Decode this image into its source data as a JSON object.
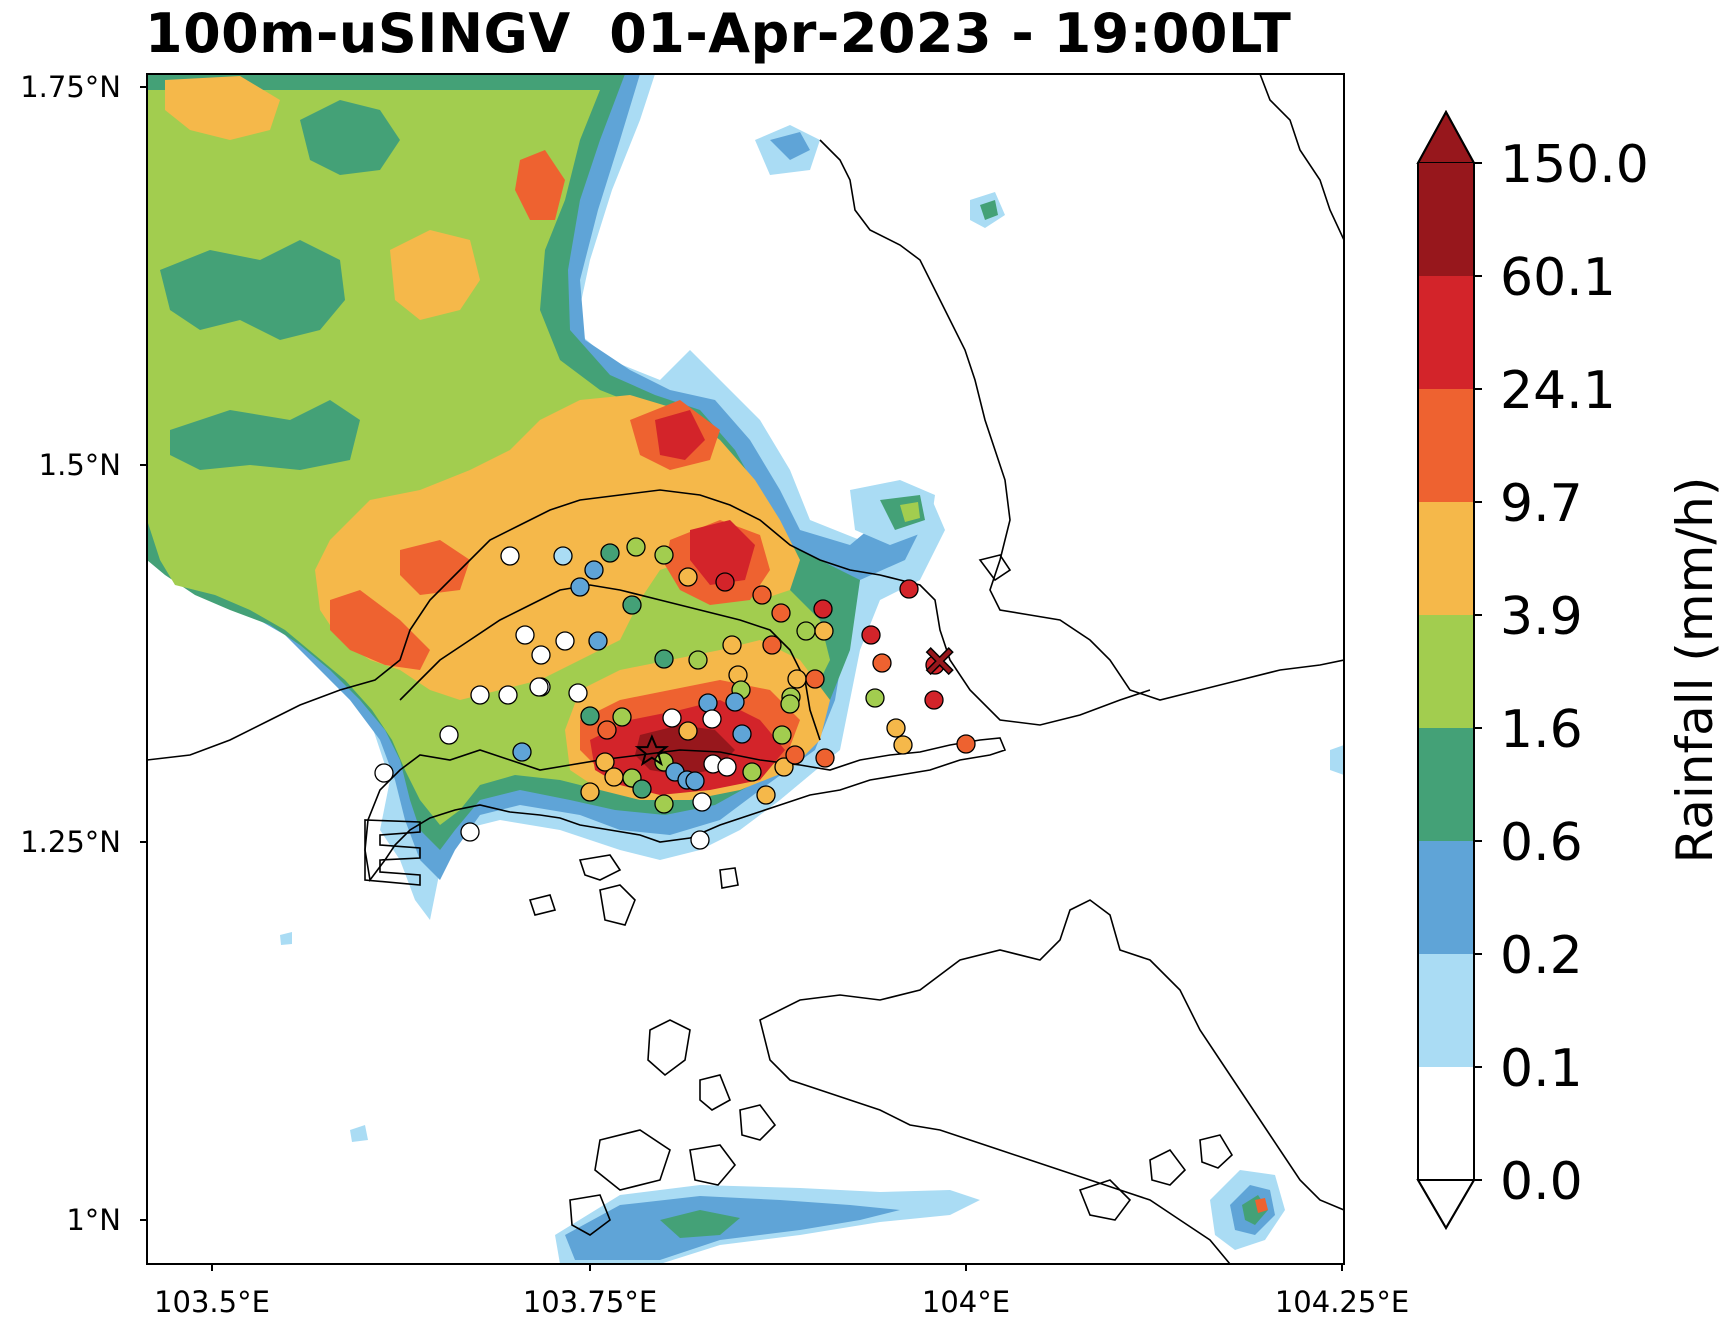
{
  "title": "100m-uSINGV  01-Apr-2023 - 19:00LT",
  "axes": {
    "y_ticks": [
      "1.75°N",
      "1.5°N",
      "1.25°N",
      "1°N"
    ],
    "x_ticks": [
      "103.5°E",
      "103.75°E",
      "104°E",
      "104.25°E"
    ]
  },
  "colorbar": {
    "title": "Rainfall (mm/h)",
    "levels": [
      "0.0",
      "0.1",
      "0.2",
      "0.6",
      "1.6",
      "3.9",
      "9.7",
      "24.1",
      "60.1",
      "150.0"
    ],
    "colors": [
      "#ffffff",
      "#aadcf4",
      "#5fa4d7",
      "#44a177",
      "#a2cd4f",
      "#f5b84a",
      "#ee6230",
      "#d3242a",
      "#97171c"
    ]
  },
  "colors": {
    "white": "#ffffff",
    "lightblue": "#aadcf4",
    "blue": "#5fa4d7",
    "green": "#44a177",
    "lightgreen": "#a2cd4f",
    "orange": "#f5b84a",
    "darkorange": "#ee6230",
    "red": "#d3242a",
    "darkred": "#97171c"
  },
  "markers": [
    {
      "name": "star-marker",
      "symbol": "star",
      "color": "#d3242a",
      "lon": 103.792,
      "lat": 1.31
    },
    {
      "name": "x-marker",
      "symbol": "cross",
      "color": "#97171c",
      "lon": 103.983,
      "lat": 1.37
    }
  ]
}
